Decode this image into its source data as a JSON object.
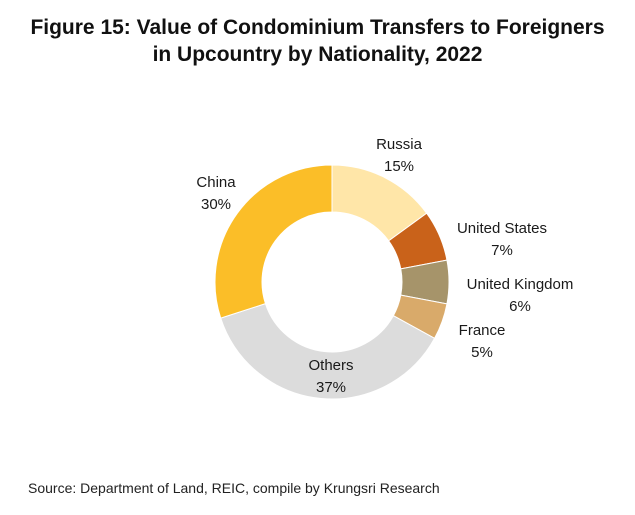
{
  "figure": {
    "title_line1": "Figure 15: Value of Condominium Transfers to Foreigners",
    "title_line2": "in Upcountry by Nationality, 2022",
    "source": "Source: Department of Land, REIC, compile by Krungsri Research"
  },
  "chart_data": {
    "type": "pie",
    "title": "Figure 15: Value of Condominium Transfers to Foreigners in Upcountry by Nationality, 2022",
    "donut": true,
    "start_angle_deg": 0,
    "direction": "clockwise",
    "slices": [
      {
        "label": "Russia",
        "value": 15,
        "value_label": "15%",
        "color": "#FFE6A8"
      },
      {
        "label": "United States",
        "value": 7,
        "value_label": "7%",
        "color": "#C9621A"
      },
      {
        "label": "United Kingdom",
        "value": 6,
        "value_label": "6%",
        "color": "#A6946A"
      },
      {
        "label": "France",
        "value": 5,
        "value_label": "5%",
        "color": "#D9AA6A"
      },
      {
        "label": "Others",
        "value": 37,
        "value_label": "37%",
        "color": "#DCDCDC"
      },
      {
        "label": "China",
        "value": 30,
        "value_label": "30%",
        "color": "#FBBE28"
      }
    ]
  }
}
